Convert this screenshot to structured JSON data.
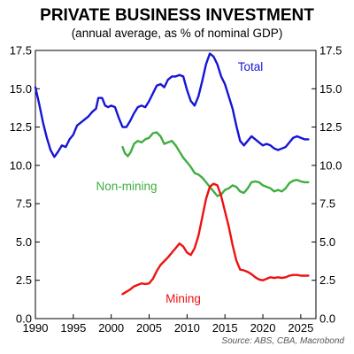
{
  "chart_data": {
    "type": "line",
    "title": "PRIVATE BUSINESS INVESTMENT",
    "subtitle": "(annual average, as % of nominal GDP)",
    "source": "Source: ABS, CBA, Macrobond",
    "xlim": [
      1990,
      2027
    ],
    "ylim": [
      0,
      17.5
    ],
    "x_ticks": [
      "1990",
      "1995",
      "2000",
      "2005",
      "2010",
      "2015",
      "2020",
      "2025"
    ],
    "y_ticks_left": [
      "0.0",
      "2.5",
      "5.0",
      "7.5",
      "10.0",
      "12.5",
      "15.0",
      "17.5"
    ],
    "y_ticks_right": [
      "0.0",
      "2.5",
      "5.0",
      "7.5",
      "10.0",
      "12.5",
      "15.0",
      "17.5"
    ],
    "grid": false,
    "series": [
      {
        "name": "Total",
        "color": "#1515d6",
        "points": [
          [
            1990.0,
            15.1
          ],
          [
            1990.5,
            14.0
          ],
          [
            1991.0,
            12.8
          ],
          [
            1991.5,
            11.8
          ],
          [
            1992.0,
            11.0
          ],
          [
            1992.5,
            10.55
          ],
          [
            1993.0,
            10.9
          ],
          [
            1993.5,
            11.3
          ],
          [
            1994.0,
            11.2
          ],
          [
            1994.5,
            11.7
          ],
          [
            1995.0,
            12.0
          ],
          [
            1995.5,
            12.6
          ],
          [
            1996.0,
            12.8
          ],
          [
            1996.5,
            13.0
          ],
          [
            1997.0,
            13.2
          ],
          [
            1997.5,
            13.5
          ],
          [
            1998.0,
            13.7
          ],
          [
            1998.3,
            14.4
          ],
          [
            1998.8,
            14.4
          ],
          [
            1999.2,
            13.9
          ],
          [
            1999.6,
            13.8
          ],
          [
            2000.0,
            13.9
          ],
          [
            2000.5,
            13.8
          ],
          [
            2001.0,
            13.1
          ],
          [
            2001.5,
            12.5
          ],
          [
            2002.0,
            12.5
          ],
          [
            2002.5,
            12.9
          ],
          [
            2003.0,
            13.4
          ],
          [
            2003.5,
            13.8
          ],
          [
            2004.0,
            13.9
          ],
          [
            2004.5,
            13.8
          ],
          [
            2005.0,
            14.2
          ],
          [
            2005.5,
            14.7
          ],
          [
            2006.0,
            15.2
          ],
          [
            2006.5,
            15.3
          ],
          [
            2007.0,
            15.1
          ],
          [
            2007.5,
            15.6
          ],
          [
            2008.0,
            15.8
          ],
          [
            2008.5,
            15.8
          ],
          [
            2009.0,
            15.9
          ],
          [
            2009.5,
            15.8
          ],
          [
            2010.0,
            14.9
          ],
          [
            2010.5,
            14.2
          ],
          [
            2011.0,
            13.9
          ],
          [
            2011.5,
            14.5
          ],
          [
            2012.0,
            15.5
          ],
          [
            2012.5,
            16.6
          ],
          [
            2013.0,
            17.3
          ],
          [
            2013.5,
            17.1
          ],
          [
            2014.0,
            16.6
          ],
          [
            2014.5,
            15.8
          ],
          [
            2015.0,
            15.3
          ],
          [
            2015.5,
            14.5
          ],
          [
            2016.0,
            13.7
          ],
          [
            2016.5,
            12.6
          ],
          [
            2017.0,
            11.6
          ],
          [
            2017.5,
            11.3
          ],
          [
            2018.0,
            11.6
          ],
          [
            2018.5,
            11.9
          ],
          [
            2019.0,
            11.7
          ],
          [
            2019.5,
            11.5
          ],
          [
            2020.0,
            11.3
          ],
          [
            2020.5,
            11.4
          ],
          [
            2021.0,
            11.3
          ],
          [
            2021.5,
            11.1
          ],
          [
            2022.0,
            11.0
          ],
          [
            2022.5,
            11.1
          ],
          [
            2023.0,
            11.2
          ],
          [
            2023.5,
            11.5
          ],
          [
            2024.0,
            11.8
          ],
          [
            2024.5,
            11.9
          ],
          [
            2025.0,
            11.8
          ],
          [
            2025.5,
            11.7
          ],
          [
            2026.0,
            11.7
          ]
        ]
      },
      {
        "name": "Non-mining",
        "color": "#3fae3f",
        "points": [
          [
            2001.5,
            11.2
          ],
          [
            2001.8,
            10.8
          ],
          [
            2002.2,
            10.6
          ],
          [
            2002.6,
            10.9
          ],
          [
            2003.0,
            11.4
          ],
          [
            2003.5,
            11.6
          ],
          [
            2004.0,
            11.5
          ],
          [
            2004.5,
            11.7
          ],
          [
            2005.0,
            11.8
          ],
          [
            2005.5,
            12.1
          ],
          [
            2006.0,
            12.15
          ],
          [
            2006.5,
            11.9
          ],
          [
            2007.0,
            11.4
          ],
          [
            2007.5,
            11.5
          ],
          [
            2008.0,
            11.6
          ],
          [
            2008.5,
            11.3
          ],
          [
            2009.0,
            10.9
          ],
          [
            2009.5,
            10.5
          ],
          [
            2010.0,
            10.2
          ],
          [
            2010.5,
            9.9
          ],
          [
            2011.0,
            9.5
          ],
          [
            2011.5,
            9.4
          ],
          [
            2012.0,
            9.2
          ],
          [
            2012.5,
            8.9
          ],
          [
            2013.0,
            8.6
          ],
          [
            2013.5,
            8.3
          ],
          [
            2014.0,
            8.0
          ],
          [
            2014.5,
            8.1
          ],
          [
            2015.0,
            8.4
          ],
          [
            2015.5,
            8.5
          ],
          [
            2016.0,
            8.7
          ],
          [
            2016.5,
            8.6
          ],
          [
            2017.0,
            8.3
          ],
          [
            2017.5,
            8.2
          ],
          [
            2018.0,
            8.5
          ],
          [
            2018.5,
            8.9
          ],
          [
            2019.0,
            8.95
          ],
          [
            2019.5,
            8.9
          ],
          [
            2020.0,
            8.7
          ],
          [
            2020.5,
            8.6
          ],
          [
            2021.0,
            8.5
          ],
          [
            2021.5,
            8.3
          ],
          [
            2022.0,
            8.4
          ],
          [
            2022.5,
            8.3
          ],
          [
            2023.0,
            8.5
          ],
          [
            2023.5,
            8.85
          ],
          [
            2024.0,
            9.0
          ],
          [
            2024.5,
            9.05
          ],
          [
            2025.0,
            8.95
          ],
          [
            2025.5,
            8.9
          ],
          [
            2026.0,
            8.9
          ]
        ]
      },
      {
        "name": "Mining",
        "color": "#ee1111",
        "points": [
          [
            2001.5,
            1.6
          ],
          [
            2002.0,
            1.75
          ],
          [
            2002.5,
            1.9
          ],
          [
            2003.0,
            2.1
          ],
          [
            2003.5,
            2.2
          ],
          [
            2004.0,
            2.3
          ],
          [
            2004.5,
            2.25
          ],
          [
            2005.0,
            2.3
          ],
          [
            2005.5,
            2.6
          ],
          [
            2006.0,
            3.1
          ],
          [
            2006.5,
            3.5
          ],
          [
            2007.0,
            3.75
          ],
          [
            2007.5,
            4.0
          ],
          [
            2008.0,
            4.3
          ],
          [
            2008.5,
            4.6
          ],
          [
            2009.0,
            4.9
          ],
          [
            2009.5,
            4.7
          ],
          [
            2010.0,
            4.3
          ],
          [
            2010.5,
            4.15
          ],
          [
            2011.0,
            4.6
          ],
          [
            2011.5,
            5.4
          ],
          [
            2012.0,
            6.6
          ],
          [
            2012.5,
            7.8
          ],
          [
            2013.0,
            8.6
          ],
          [
            2013.5,
            8.8
          ],
          [
            2014.0,
            8.7
          ],
          [
            2014.5,
            8.0
          ],
          [
            2015.0,
            7.0
          ],
          [
            2015.5,
            6.0
          ],
          [
            2016.0,
            4.8
          ],
          [
            2016.5,
            3.8
          ],
          [
            2017.0,
            3.2
          ],
          [
            2017.5,
            3.15
          ],
          [
            2018.0,
            3.05
          ],
          [
            2018.5,
            2.9
          ],
          [
            2019.0,
            2.7
          ],
          [
            2019.5,
            2.55
          ],
          [
            2020.0,
            2.5
          ],
          [
            2020.5,
            2.6
          ],
          [
            2021.0,
            2.7
          ],
          [
            2021.5,
            2.65
          ],
          [
            2022.0,
            2.7
          ],
          [
            2022.5,
            2.65
          ],
          [
            2023.0,
            2.7
          ],
          [
            2023.5,
            2.8
          ],
          [
            2024.0,
            2.85
          ],
          [
            2024.5,
            2.85
          ],
          [
            2025.0,
            2.8
          ],
          [
            2025.5,
            2.8
          ],
          [
            2026.0,
            2.8
          ]
        ]
      }
    ]
  }
}
